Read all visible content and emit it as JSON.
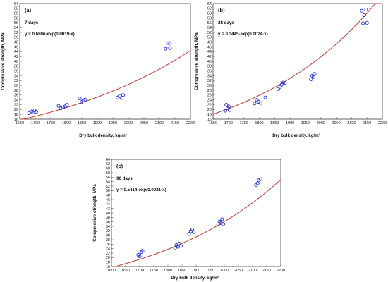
{
  "chart_data": [
    {
      "type": "scatter",
      "panel_label": "(a)",
      "age_label": "7 days",
      "equation": "y = 0.6806·exp(0.0019·x)",
      "xlabel": "Dry bulk density, kg/m³",
      "ylabel": "Compressive strength, MPa",
      "xlim": [
        1650,
        2200
      ],
      "ylim": [
        16,
        64
      ],
      "xticks": [
        1650,
        1700,
        1750,
        1800,
        1850,
        1900,
        1950,
        2000,
        2050,
        2100,
        2150,
        2200
      ],
      "yticks": [
        16,
        18,
        20,
        22,
        24,
        26,
        28,
        30,
        32,
        34,
        36,
        38,
        40,
        42,
        44,
        46,
        48,
        50,
        52,
        54,
        56,
        58,
        60,
        62,
        64
      ],
      "fit": {
        "a": 0.6806,
        "b": 0.0019,
        "color": "#c0392b"
      },
      "marker_color": "#1f2fd4",
      "points": [
        [
          1680,
          18.5
        ],
        [
          1688,
          19.2
        ],
        [
          1693,
          18.9
        ],
        [
          1698,
          19.6
        ],
        [
          1703,
          19.1
        ],
        [
          1775,
          21.5
        ],
        [
          1782,
          20.5
        ],
        [
          1790,
          20.9
        ],
        [
          1796,
          21.3
        ],
        [
          1802,
          21.9
        ],
        [
          1843,
          24.6
        ],
        [
          1849,
          23.1
        ],
        [
          1855,
          23.8
        ],
        [
          1861,
          24.1
        ],
        [
          1965,
          25.0
        ],
        [
          1972,
          25.6
        ],
        [
          1978,
          24.8
        ],
        [
          1983,
          26.0
        ],
        [
          2120,
          45.2
        ],
        [
          2126,
          46.5
        ],
        [
          2132,
          47.6
        ],
        [
          2134,
          45.5
        ]
      ]
    },
    {
      "type": "scatter",
      "panel_label": "(b)",
      "age_label": "28 days",
      "equation": "y = 0.3445·exp(0.0024·x)",
      "xlabel": "Dry bulk density, kg/m³",
      "ylabel": "Compressive strength, MPa",
      "xlim": [
        1650,
        2200
      ],
      "ylim": [
        16,
        64
      ],
      "xticks": [
        1650,
        1700,
        1750,
        1800,
        1850,
        1900,
        1950,
        2000,
        2050,
        2100,
        2150,
        2200
      ],
      "yticks": [
        16,
        18,
        20,
        22,
        24,
        26,
        28,
        30,
        32,
        34,
        36,
        38,
        40,
        42,
        44,
        46,
        48,
        50,
        52,
        54,
        56,
        58,
        60,
        62,
        64
      ],
      "fit": {
        "a": 0.3445,
        "b": 0.0024,
        "color": "#c0392b"
      },
      "marker_color": "#1f2fd4",
      "points": [
        [
          1690,
          19.5
        ],
        [
          1693,
          22.0
        ],
        [
          1697,
          20.5
        ],
        [
          1701,
          21.3
        ],
        [
          1704,
          19.8
        ],
        [
          1785,
          22.5
        ],
        [
          1792,
          24.0
        ],
        [
          1798,
          23.2
        ],
        [
          1804,
          22.7
        ],
        [
          1820,
          25.0
        ],
        [
          1862,
          28.5
        ],
        [
          1868,
          29.4
        ],
        [
          1873,
          30.3
        ],
        [
          1878,
          31.2
        ],
        [
          1883,
          31.0
        ],
        [
          1968,
          32.5
        ],
        [
          1972,
          34.0
        ],
        [
          1976,
          33.5
        ],
        [
          1980,
          34.8
        ],
        [
          2133,
          61.0
        ],
        [
          2137,
          55.8
        ],
        [
          2141,
          59.2
        ],
        [
          2147,
          61.5
        ],
        [
          2150,
          56.0
        ]
      ]
    },
    {
      "type": "scatter",
      "panel_label": "(c)",
      "age_label": "90 days",
      "equation": "y = 0.5414·exp(0.0021·x)",
      "xlabel": "Dry bulk density, kg/m³",
      "ylabel": "Compressive strength, MPa",
      "xlim": [
        1600,
        2200
      ],
      "ylim": [
        16,
        64
      ],
      "xticks": [
        1600,
        1650,
        1700,
        1750,
        1800,
        1850,
        1900,
        1950,
        2000,
        2050,
        2100,
        2150,
        2200
      ],
      "yticks": [
        16,
        18,
        20,
        22,
        24,
        26,
        28,
        30,
        32,
        34,
        36,
        38,
        40,
        42,
        44,
        46,
        48,
        50,
        52,
        54,
        56,
        58,
        60,
        62,
        64
      ],
      "fit": {
        "a": 0.5414,
        "b": 0.0021,
        "color": "#c0392b"
      },
      "marker_color": "#1f2fd4",
      "points": [
        [
          1695,
          21.2
        ],
        [
          1700,
          20.5
        ],
        [
          1705,
          22.4
        ],
        [
          1710,
          23.0
        ],
        [
          1698,
          21.8
        ],
        [
          1825,
          24.2
        ],
        [
          1830,
          25.6
        ],
        [
          1836,
          24.8
        ],
        [
          1840,
          26.3
        ],
        [
          1846,
          25.2
        ],
        [
          1875,
          30.6
        ],
        [
          1881,
          31.8
        ],
        [
          1886,
          32.5
        ],
        [
          1892,
          31.4
        ],
        [
          1978,
          34.8
        ],
        [
          1983,
          36.1
        ],
        [
          1988,
          35.4
        ],
        [
          1992,
          37.2
        ],
        [
          1996,
          35.0
        ],
        [
          2112,
          52.4
        ],
        [
          2118,
          53.3
        ],
        [
          2122,
          54.6
        ],
        [
          2128,
          55.1
        ]
      ]
    }
  ]
}
